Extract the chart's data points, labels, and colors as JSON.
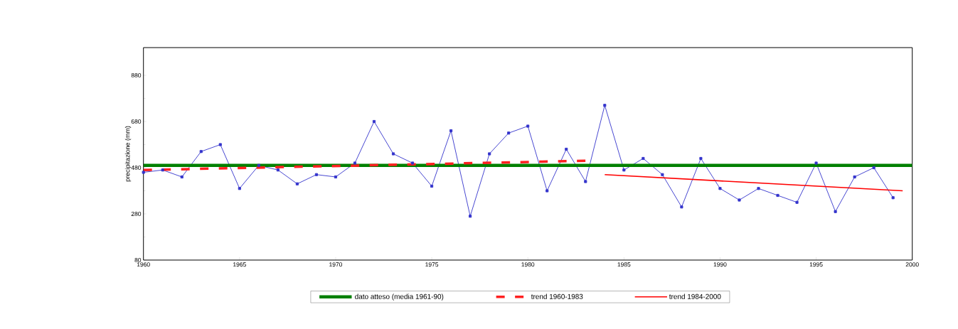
{
  "chart_data": {
    "type": "line",
    "ylabel": "precipitazione (mm)",
    "xlim": [
      1960,
      2000
    ],
    "ylim": [
      80,
      1000
    ],
    "xticks": [
      1960,
      1965,
      1970,
      1975,
      1980,
      1985,
      1990,
      1995,
      2000
    ],
    "yticks": [
      80,
      280,
      480,
      680,
      880
    ],
    "legend": "bottom",
    "series": [
      {
        "color": "#3333cc",
        "marker": "square",
        "x": [
          1960,
          1961,
          1962,
          1963,
          1964,
          1965,
          1966,
          1967,
          1968,
          1969,
          1970,
          1971,
          1972,
          1973,
          1974,
          1975,
          1976,
          1977,
          1978,
          1979,
          1980,
          1981,
          1982,
          1983,
          1984,
          1985,
          1986,
          1987,
          1988,
          1989,
          1990,
          1991,
          1992,
          1993,
          1994,
          1995,
          1996,
          1997,
          1998,
          1999
        ],
        "values": [
          460,
          470,
          440,
          550,
          580,
          390,
          490,
          470,
          410,
          450,
          440,
          500,
          680,
          540,
          500,
          400,
          640,
          270,
          540,
          630,
          660,
          380,
          560,
          420,
          750,
          470,
          520,
          450,
          310,
          520,
          390,
          340,
          390,
          360,
          330,
          500,
          290,
          440,
          480,
          350
        ]
      },
      {
        "name": "dato atteso (media 1961-90)",
        "color": "#008000",
        "line_style": "solid",
        "x": [
          1960,
          2000
        ],
        "values": [
          490,
          490
        ]
      },
      {
        "name": "trend 1960-1983",
        "color": "#ff2020",
        "line_style": "dashed",
        "x": [
          1960,
          1983
        ],
        "values": [
          470,
          510
        ]
      },
      {
        "name": "trend 1984-2000",
        "color": "#ff0000",
        "line_style": "solid",
        "x": [
          1984,
          1999.5
        ],
        "values": [
          450,
          380
        ]
      }
    ]
  }
}
